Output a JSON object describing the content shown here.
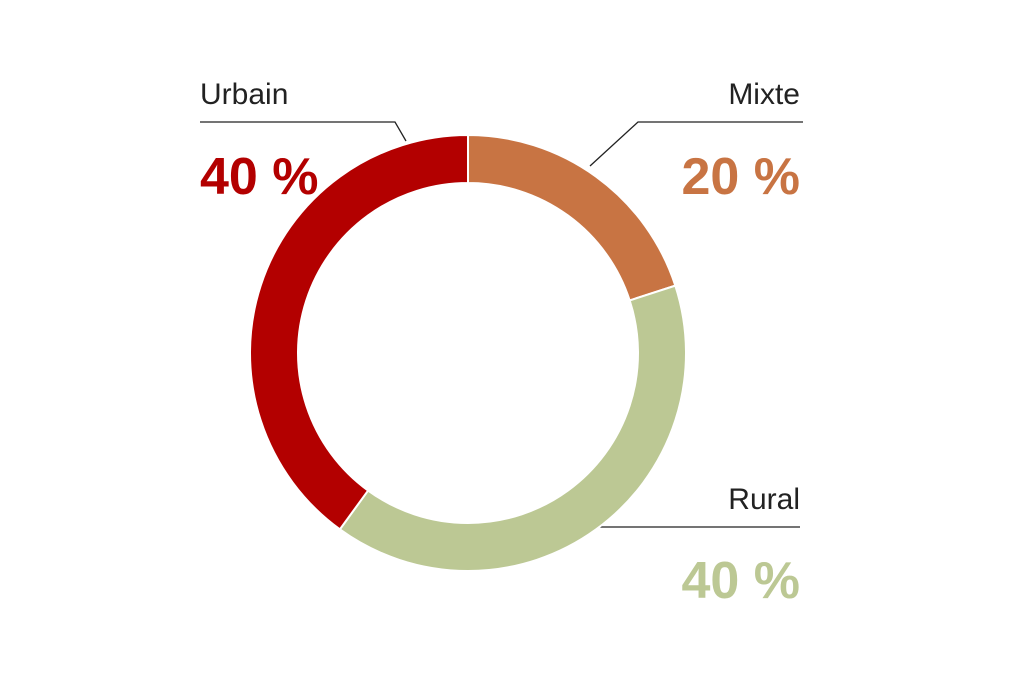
{
  "chart_data": {
    "type": "donut",
    "categories": [
      "Mixte",
      "Rural",
      "Urbain"
    ],
    "values": [
      20,
      40,
      40
    ],
    "value_labels": [
      "20 %",
      "40 %",
      "40 %"
    ],
    "colors": [
      "#c87443",
      "#bcc894",
      "#b30000"
    ]
  }
}
